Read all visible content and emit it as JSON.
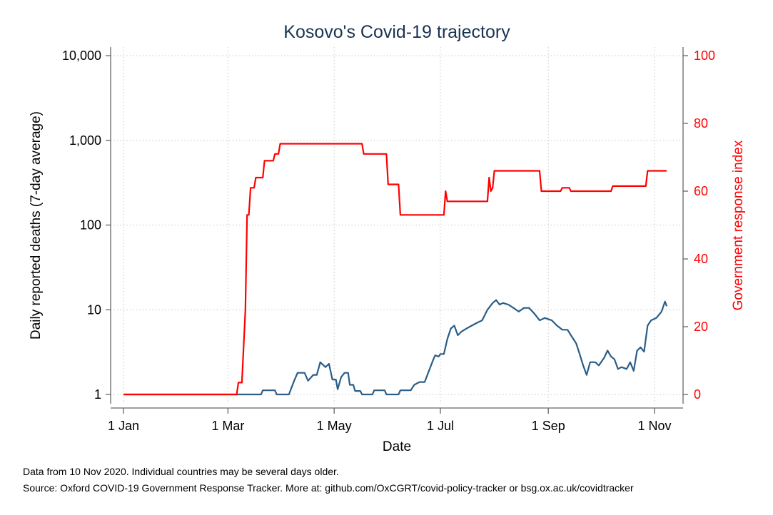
{
  "chart_data": {
    "type": "line",
    "title": "Kosovo's Covid-19 trajectory",
    "xlabel": "Date",
    "ylabel_left": "Daily reported deaths (7-day average)",
    "ylabel_right": "Government response index",
    "x_ticks": [
      {
        "date": "2020-01-01",
        "label": "1 Jan"
      },
      {
        "date": "2020-03-01",
        "label": "1 Mar"
      },
      {
        "date": "2020-05-01",
        "label": "1 May"
      },
      {
        "date": "2020-07-01",
        "label": "1 Jul"
      },
      {
        "date": "2020-09-01",
        "label": "1 Sep"
      },
      {
        "date": "2020-11-01",
        "label": "1 Nov"
      }
    ],
    "xlim": [
      "2020-01-01",
      "2020-11-10"
    ],
    "y_left": {
      "scale": "log",
      "lim": [
        1,
        10000
      ],
      "ticks": [
        {
          "value": 1,
          "label": "1"
        },
        {
          "value": 10,
          "label": "10"
        },
        {
          "value": 100,
          "label": "100"
        },
        {
          "value": 1000,
          "label": "1,000"
        },
        {
          "value": 10000,
          "label": "10,000"
        }
      ]
    },
    "y_right": {
      "scale": "linear",
      "lim": [
        0,
        100
      ],
      "ticks": [
        {
          "value": 0,
          "label": "0"
        },
        {
          "value": 20,
          "label": "20"
        },
        {
          "value": 40,
          "label": "40"
        },
        {
          "value": 60,
          "label": "60"
        },
        {
          "value": 80,
          "label": "80"
        },
        {
          "value": 100,
          "label": "100"
        }
      ]
    },
    "grid": true,
    "series": [
      {
        "axis": "left",
        "color": "#2b5d86",
        "points": [
          [
            "2020-01-01",
            1
          ],
          [
            "2020-03-20",
            1
          ],
          [
            "2020-03-21",
            1.12
          ],
          [
            "2020-03-28",
            1.12
          ],
          [
            "2020-03-29",
            1
          ],
          [
            "2020-04-05",
            1
          ],
          [
            "2020-04-08",
            1.45
          ],
          [
            "2020-04-10",
            1.8
          ],
          [
            "2020-04-14",
            1.8
          ],
          [
            "2020-04-16",
            1.45
          ],
          [
            "2020-04-19",
            1.7
          ],
          [
            "2020-04-21",
            1.7
          ],
          [
            "2020-04-23",
            2.4
          ],
          [
            "2020-04-26",
            2.1
          ],
          [
            "2020-04-28",
            2.3
          ],
          [
            "2020-04-30",
            1.5
          ],
          [
            "2020-05-02",
            1.5
          ],
          [
            "2020-05-03",
            1.15
          ],
          [
            "2020-05-05",
            1.6
          ],
          [
            "2020-05-07",
            1.8
          ],
          [
            "2020-05-09",
            1.8
          ],
          [
            "2020-05-10",
            1.3
          ],
          [
            "2020-05-12",
            1.3
          ],
          [
            "2020-05-13",
            1.1
          ],
          [
            "2020-05-16",
            1.1
          ],
          [
            "2020-05-17",
            1
          ],
          [
            "2020-05-23",
            1
          ],
          [
            "2020-05-24",
            1.12
          ],
          [
            "2020-05-30",
            1.12
          ],
          [
            "2020-05-31",
            1
          ],
          [
            "2020-06-07",
            1
          ],
          [
            "2020-06-08",
            1.12
          ],
          [
            "2020-06-14",
            1.12
          ],
          [
            "2020-06-16",
            1.3
          ],
          [
            "2020-06-19",
            1.4
          ],
          [
            "2020-06-22",
            1.4
          ],
          [
            "2020-06-24",
            1.8
          ],
          [
            "2020-06-27",
            2.6
          ],
          [
            "2020-06-28",
            2.9
          ],
          [
            "2020-06-30",
            2.8
          ],
          [
            "2020-07-01",
            3.0
          ],
          [
            "2020-07-03",
            3.0
          ],
          [
            "2020-07-05",
            4.5
          ],
          [
            "2020-07-07",
            6.0
          ],
          [
            "2020-07-09",
            6.5
          ],
          [
            "2020-07-11",
            5.0
          ],
          [
            "2020-07-13",
            5.5
          ],
          [
            "2020-07-16",
            6.0
          ],
          [
            "2020-07-19",
            6.5
          ],
          [
            "2020-07-22",
            7.0
          ],
          [
            "2020-07-25",
            7.5
          ],
          [
            "2020-07-28",
            10.0
          ],
          [
            "2020-07-31",
            12.0
          ],
          [
            "2020-08-02",
            13.0
          ],
          [
            "2020-08-04",
            11.5
          ],
          [
            "2020-08-06",
            12.0
          ],
          [
            "2020-08-09",
            11.5
          ],
          [
            "2020-08-12",
            10.5
          ],
          [
            "2020-08-15",
            9.5
          ],
          [
            "2020-08-18",
            10.5
          ],
          [
            "2020-08-21",
            10.5
          ],
          [
            "2020-08-24",
            9.0
          ],
          [
            "2020-08-27",
            7.5
          ],
          [
            "2020-08-30",
            8.0
          ],
          [
            "2020-09-03",
            7.5
          ],
          [
            "2020-09-06",
            6.5
          ],
          [
            "2020-09-09",
            5.8
          ],
          [
            "2020-09-12",
            5.8
          ],
          [
            "2020-09-14",
            5.0
          ],
          [
            "2020-09-17",
            4.0
          ],
          [
            "2020-09-19",
            3.0
          ],
          [
            "2020-09-21",
            2.2
          ],
          [
            "2020-09-23",
            1.7
          ],
          [
            "2020-09-25",
            2.4
          ],
          [
            "2020-09-28",
            2.4
          ],
          [
            "2020-09-30",
            2.2
          ],
          [
            "2020-10-03",
            2.7
          ],
          [
            "2020-10-05",
            3.3
          ],
          [
            "2020-10-07",
            2.8
          ],
          [
            "2020-10-09",
            2.6
          ],
          [
            "2020-10-11",
            2.0
          ],
          [
            "2020-10-13",
            2.1
          ],
          [
            "2020-10-16",
            2.0
          ],
          [
            "2020-10-18",
            2.4
          ],
          [
            "2020-10-20",
            1.9
          ],
          [
            "2020-10-22",
            3.3
          ],
          [
            "2020-10-24",
            3.6
          ],
          [
            "2020-10-26",
            3.2
          ],
          [
            "2020-10-28",
            6.5
          ],
          [
            "2020-10-30",
            7.5
          ],
          [
            "2020-11-02",
            8.0
          ],
          [
            "2020-11-05",
            9.5
          ],
          [
            "2020-11-07",
            12.5
          ],
          [
            "2020-11-08",
            11.0
          ]
        ]
      },
      {
        "axis": "right",
        "color": "#ff0000",
        "points": [
          [
            "2020-01-01",
            0
          ],
          [
            "2020-03-06",
            0
          ],
          [
            "2020-03-07",
            3.5
          ],
          [
            "2020-03-09",
            3.5
          ],
          [
            "2020-03-11",
            25
          ],
          [
            "2020-03-12",
            53
          ],
          [
            "2020-03-13",
            53
          ],
          [
            "2020-03-14",
            61
          ],
          [
            "2020-03-16",
            61
          ],
          [
            "2020-03-17",
            64
          ],
          [
            "2020-03-21",
            64
          ],
          [
            "2020-03-22",
            69
          ],
          [
            "2020-03-27",
            69
          ],
          [
            "2020-03-28",
            71
          ],
          [
            "2020-03-30",
            71
          ],
          [
            "2020-03-31",
            74
          ],
          [
            "2020-05-17",
            74
          ],
          [
            "2020-05-18",
            71
          ],
          [
            "2020-05-31",
            71
          ],
          [
            "2020-06-01",
            62
          ],
          [
            "2020-06-07",
            62
          ],
          [
            "2020-06-08",
            53
          ],
          [
            "2020-07-03",
            53
          ],
          [
            "2020-07-04",
            60
          ],
          [
            "2020-07-05",
            57
          ],
          [
            "2020-07-28",
            57
          ],
          [
            "2020-07-29",
            64
          ],
          [
            "2020-07-30",
            60
          ],
          [
            "2020-07-31",
            61
          ],
          [
            "2020-08-01",
            66
          ],
          [
            "2020-08-27",
            66
          ],
          [
            "2020-08-28",
            60
          ],
          [
            "2020-09-08",
            60
          ],
          [
            "2020-09-09",
            61
          ],
          [
            "2020-09-13",
            61
          ],
          [
            "2020-09-14",
            60
          ],
          [
            "2020-10-07",
            60
          ],
          [
            "2020-10-08",
            61.5
          ],
          [
            "2020-10-27",
            61.5
          ],
          [
            "2020-10-28",
            66
          ],
          [
            "2020-11-08",
            66
          ]
        ]
      }
    ],
    "notes": [
      "Data from 10 Nov 2020. Individual countries may be several days older.",
      "Source: Oxford COVID-19 Government Response Tracker. More at: github.com/OxCGRT/covid-policy-tracker or bsg.ox.ac.uk/covidtracker"
    ]
  }
}
